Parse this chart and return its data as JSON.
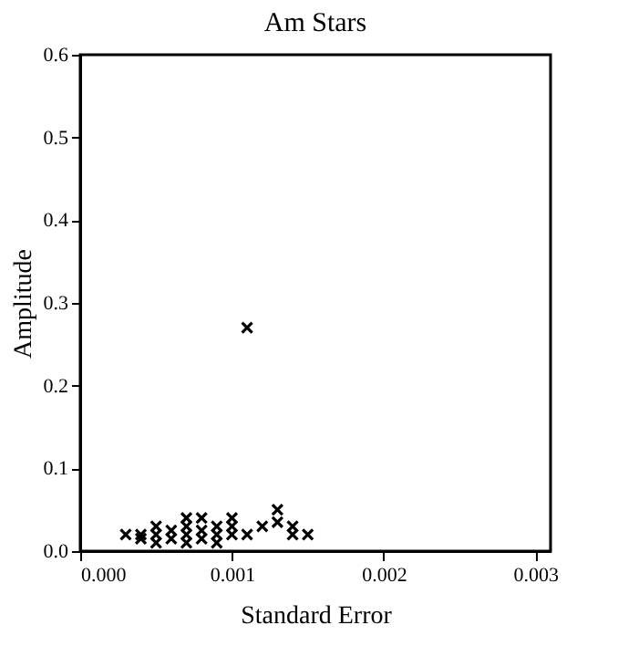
{
  "chart_data": {
    "type": "scatter",
    "title": "Am Stars",
    "xlabel": "Standard  Error",
    "ylabel": "Amplitude",
    "marker": "cross",
    "color": "#000000",
    "grid": false,
    "x": [
      0.0003,
      0.0004,
      0.0004,
      0.0005,
      0.0005,
      0.0005,
      0.0006,
      0.0006,
      0.0007,
      0.0007,
      0.0007,
      0.0007,
      0.0008,
      0.0008,
      0.0008,
      0.0009,
      0.0009,
      0.0009,
      0.001,
      0.001,
      0.001,
      0.0011,
      0.0011,
      0.0012,
      0.0013,
      0.0013,
      0.0014,
      0.0014,
      0.0015
    ],
    "values": [
      0.02,
      0.015,
      0.02,
      0.01,
      0.02,
      0.03,
      0.015,
      0.025,
      0.01,
      0.02,
      0.03,
      0.04,
      0.015,
      0.025,
      0.04,
      0.01,
      0.02,
      0.03,
      0.02,
      0.03,
      0.04,
      0.02,
      0.27,
      0.03,
      0.035,
      0.05,
      0.03,
      0.02,
      0.02
    ],
    "xlim": [
      0,
      0.0031
    ],
    "xticks": [
      {
        "value": 0,
        "label": "0.000"
      },
      {
        "value": 0.001,
        "label": "0.001"
      },
      {
        "value": 0.002,
        "label": "0.002"
      },
      {
        "value": 0.003,
        "label": "0.003"
      }
    ],
    "ylim": [
      0,
      0.6
    ],
    "yticks": [
      {
        "value": 0,
        "label": "0.0"
      },
      {
        "value": 0.1,
        "label": "0.1"
      },
      {
        "value": 0.2,
        "label": "0.2"
      },
      {
        "value": 0.3,
        "label": "0.3"
      },
      {
        "value": 0.4,
        "label": "0.4"
      },
      {
        "value": 0.5,
        "label": "0.5"
      },
      {
        "value": 0.6,
        "label": "0.6"
      }
    ]
  }
}
